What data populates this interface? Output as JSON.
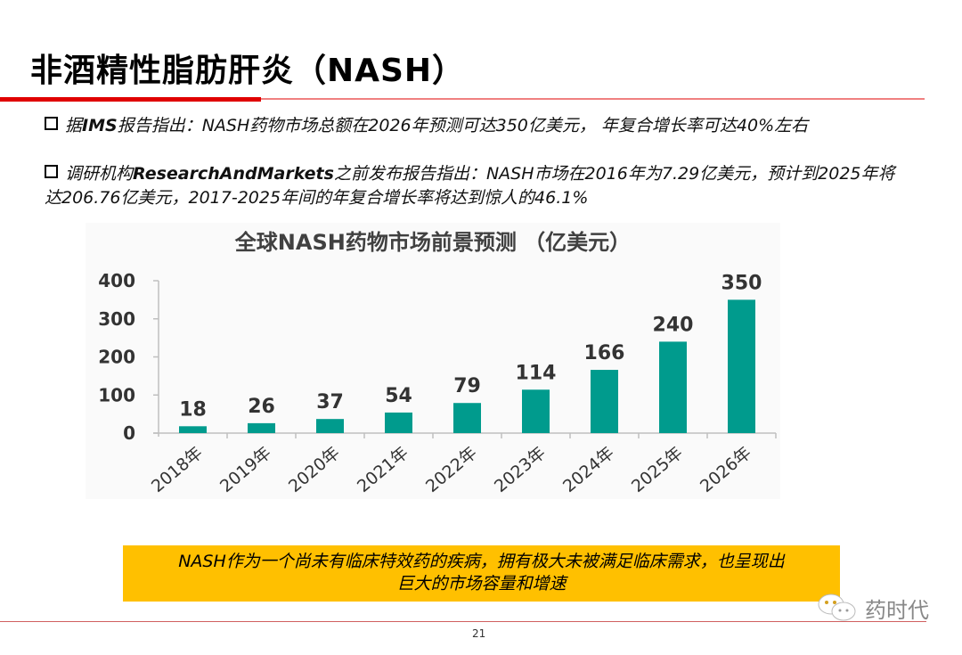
{
  "title": "非酒精性脂肪肝炎（NASH）",
  "bullets": [
    {
      "prefix": "据",
      "bold": "IMS",
      "text": "报告指出：NASH药物市场总额在2026年预测可达350亿美元， 年复合增长率可达40%左右"
    },
    {
      "prefix": "调研机构",
      "bold": "ResearchAndMarkets",
      "text": "之前发布报告指出：NASH市场在2016年为7.29亿美元，预计到2025年将达206.76亿美元，2017-2025年间的年复合增长率将达到惊人的46.1%"
    }
  ],
  "chart_data": {
    "type": "bar",
    "title": "全球NASH药物市场前景预测 （亿美元）",
    "categories": [
      "2018年",
      "2019年",
      "2020年",
      "2021年",
      "2022年",
      "2023年",
      "2024年",
      "2025年",
      "2026年"
    ],
    "values": [
      18,
      26,
      37,
      54,
      79,
      114,
      166,
      240,
      350
    ],
    "yticks": [
      "0",
      "100",
      "200",
      "300",
      "400"
    ],
    "ylim": [
      0,
      400
    ],
    "xlabel": "",
    "ylabel": "",
    "bar_color": "#009b8d",
    "grid": false,
    "legend": "none"
  },
  "callout": {
    "line1": "NASH作为一个尚未有临床特效药的疾病，拥有极大未被满足临床需求，也呈现出",
    "line2": "巨大的市场容量和增速"
  },
  "page_number": "21",
  "watermark": "药时代"
}
